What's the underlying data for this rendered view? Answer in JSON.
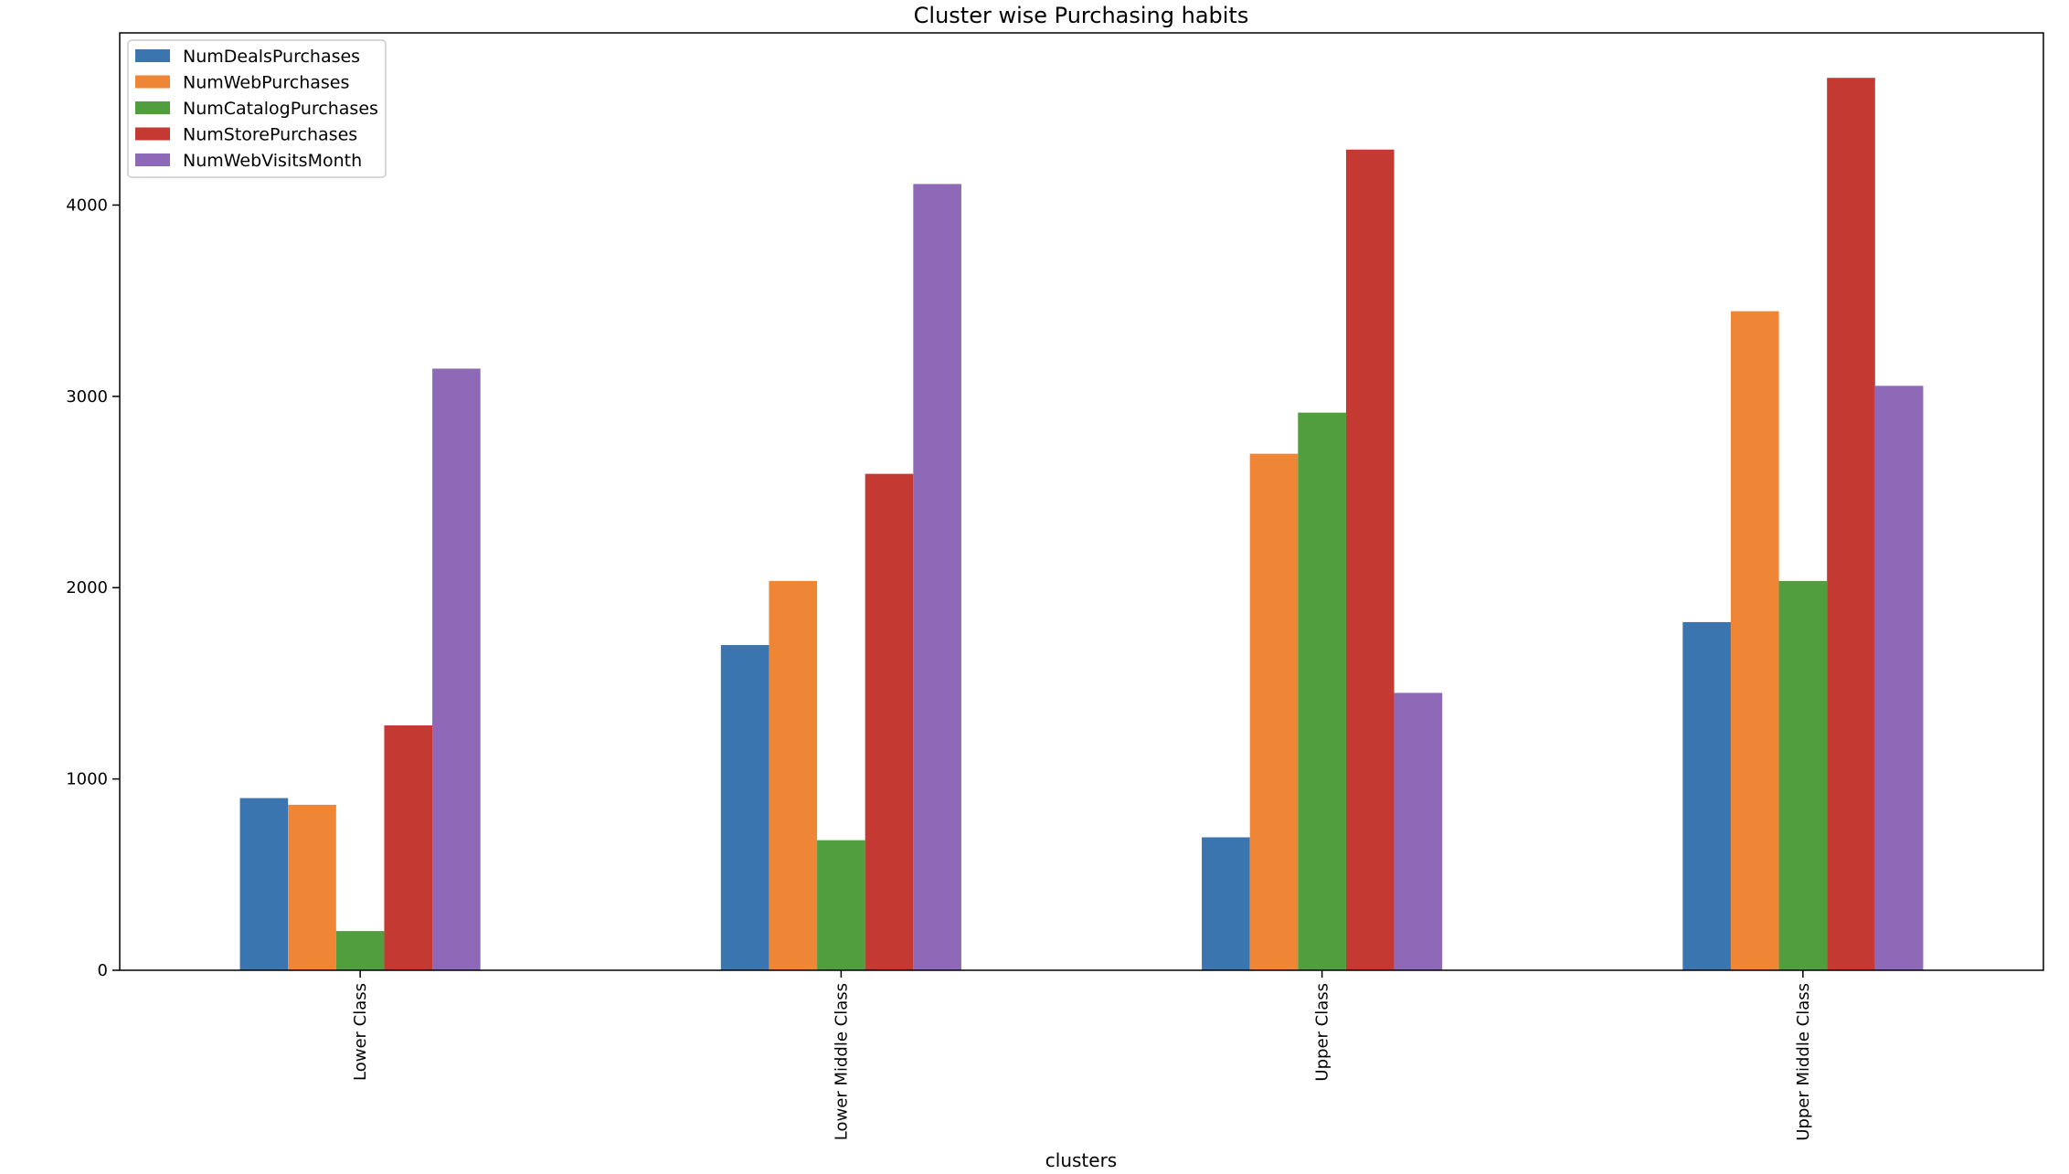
{
  "chart_data": {
    "type": "bar",
    "title": "Cluster wise Purchasing habits",
    "xlabel": "clusters",
    "ylabel": "",
    "categories": [
      "Lower Class",
      "Lower Middle Class",
      "Upper Class",
      "Upper Middle Class"
    ],
    "series": [
      {
        "name": "NumDealsPurchases",
        "color": "#3a75af",
        "values": [
          900,
          1700,
          695,
          1820
        ]
      },
      {
        "name": "NumWebPurchases",
        "color": "#ef8636",
        "values": [
          865,
          2035,
          2700,
          3445
        ]
      },
      {
        "name": "NumCatalogPurchases",
        "color": "#519e3e",
        "values": [
          205,
          680,
          2915,
          2035
        ]
      },
      {
        "name": "NumStorePurchases",
        "color": "#c43932",
        "values": [
          1280,
          2595,
          4290,
          4665
        ]
      },
      {
        "name": "NumWebVisitsMonth",
        "color": "#8d69b8",
        "values": [
          3145,
          4110,
          1450,
          3055
        ]
      }
    ],
    "ylim": [
      0,
      4900
    ],
    "yticks": [
      0,
      1000,
      2000,
      3000,
      4000
    ],
    "grid": false,
    "legend_position": "top-left"
  }
}
